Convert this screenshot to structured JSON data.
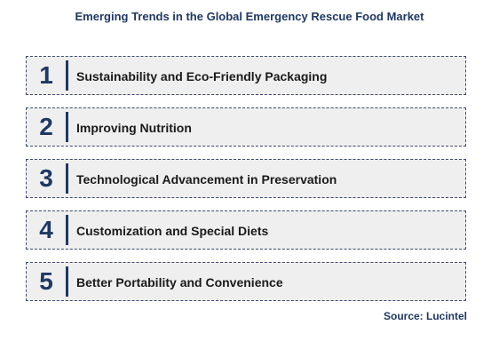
{
  "title": "Emerging Trends in the Global Emergency Rescue Food Market",
  "items": [
    {
      "number": "1",
      "label": "Sustainability and Eco-Friendly Packaging"
    },
    {
      "number": "2",
      "label": "Improving Nutrition"
    },
    {
      "number": "3",
      "label": "Technological Advancement in Preservation"
    },
    {
      "number": "4",
      "label": "Customization and Special Diets"
    },
    {
      "number": "5",
      "label": "Better Portability and Convenience"
    }
  ],
  "source": "Source: Lucintel",
  "colors": {
    "accent": "#1f3864",
    "box_fill": "#efefef",
    "box_border": "#3a4a6b"
  }
}
